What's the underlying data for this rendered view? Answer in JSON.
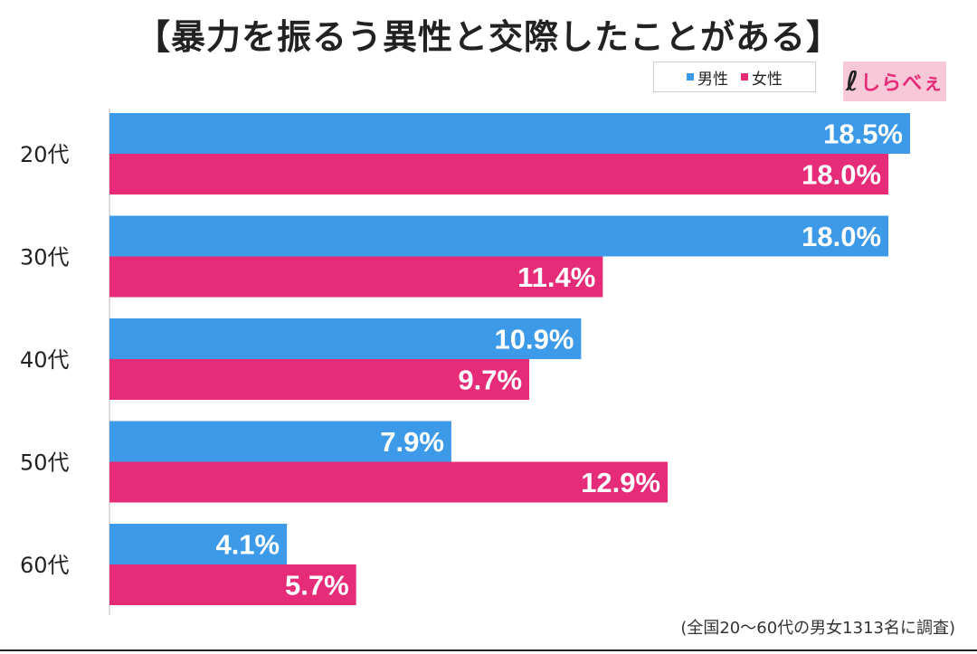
{
  "chart_data": {
    "type": "bar",
    "orientation": "horizontal",
    "title": "【暴力を振るう異性と交際したことがある】",
    "categories": [
      "20代",
      "30代",
      "40代",
      "50代",
      "60代"
    ],
    "series": [
      {
        "name": "男性",
        "color": "#3d9ae8",
        "values": [
          18.5,
          18.0,
          10.9,
          7.9,
          4.1
        ],
        "labels": [
          "18.5%",
          "18.0%",
          "10.9%",
          "7.9%",
          "4.1%"
        ]
      },
      {
        "name": "女性",
        "color": "#e62c79",
        "values": [
          18.0,
          11.4,
          9.7,
          12.9,
          5.7
        ],
        "labels": [
          "18.0%",
          "11.4%",
          "9.7%",
          "12.9%",
          "5.7%"
        ]
      }
    ],
    "xlim": [
      0,
      20
    ],
    "grid": false,
    "legend_position": "top-right"
  },
  "logo_text": "しらべぇ",
  "footnote": "(全国20〜60代の男女1313名に調査)"
}
